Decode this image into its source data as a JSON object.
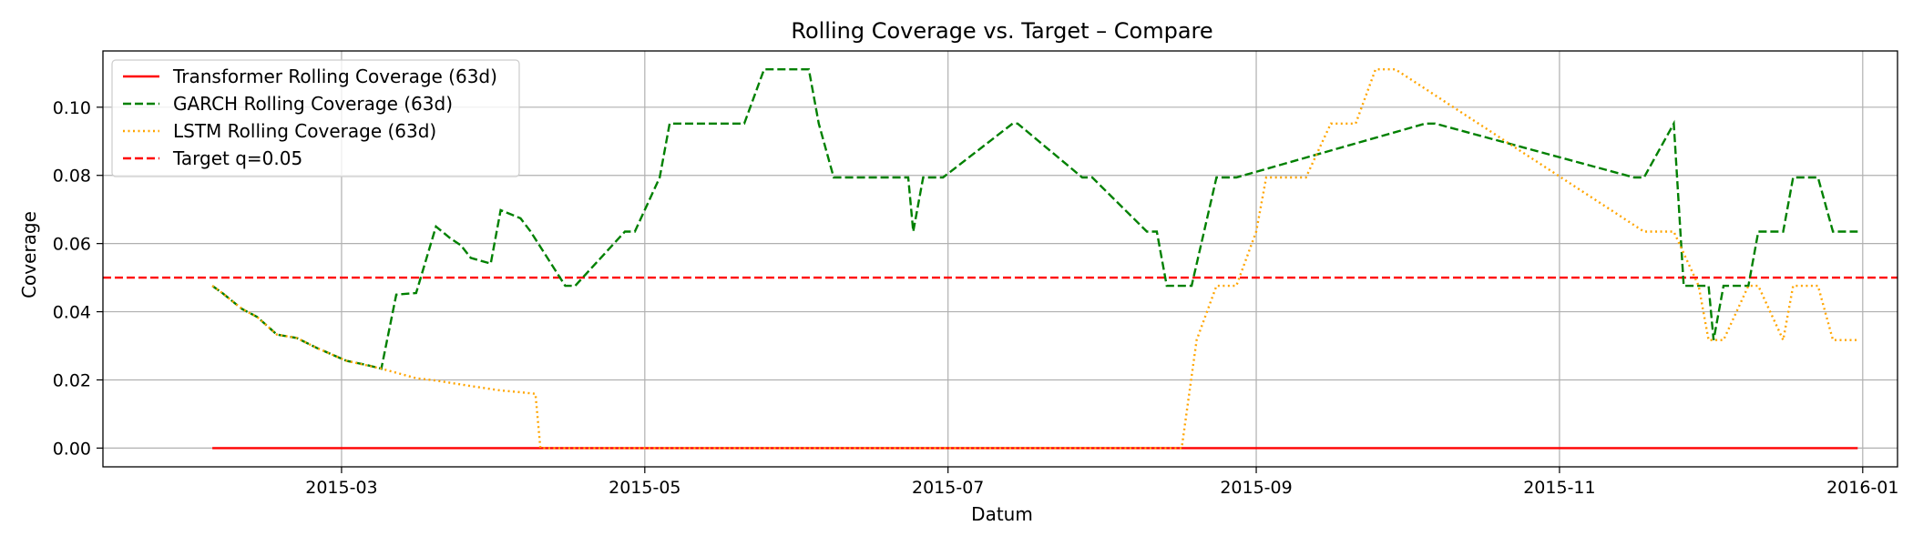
{
  "chart_data": {
    "type": "line",
    "title": "Rolling Coverage vs. Target – Compare",
    "xlabel": "Datum",
    "ylabel": "Coverage",
    "xlim": [
      "2015-01-12",
      "2016-01-08"
    ],
    "ylim": [
      -0.0055,
      0.1165
    ],
    "x_ticks": [
      "2015-03-01",
      "2015-05-01",
      "2015-07-01",
      "2015-09-01",
      "2015-11-01",
      "2016-01-01"
    ],
    "x_tick_labels": [
      "2015-03",
      "2015-05",
      "2015-07",
      "2015-09",
      "2015-11",
      "2016-01"
    ],
    "y_ticks": [
      0.0,
      0.02,
      0.04,
      0.06,
      0.08,
      0.1
    ],
    "y_tick_labels": [
      "0.00",
      "0.02",
      "0.04",
      "0.06",
      "0.08",
      "0.10"
    ],
    "grid": true,
    "legend_position": "top-left",
    "series": [
      {
        "name": "Transformer Rolling Coverage (63d)",
        "color": "#ff0000",
        "style": "solid",
        "x": [
          "2015-02-03",
          "2015-12-31"
        ],
        "y": [
          0.0,
          0.0
        ]
      },
      {
        "name": "GARCH Rolling Coverage (63d)",
        "color": "#008000",
        "style": "dashed",
        "x": [
          "2015-02-03",
          "2015-02-05",
          "2015-02-09",
          "2015-02-12",
          "2015-02-16",
          "2015-02-20",
          "2015-02-24",
          "2015-03-02",
          "2015-03-06",
          "2015-03-09",
          "2015-03-12",
          "2015-03-16",
          "2015-03-20",
          "2015-03-23",
          "2015-03-25",
          "2015-03-27",
          "2015-03-31",
          "2015-04-02",
          "2015-04-06",
          "2015-04-08",
          "2015-04-15",
          "2015-04-17",
          "2015-04-27",
          "2015-04-29",
          "2015-05-04",
          "2015-05-06",
          "2015-05-21",
          "2015-05-25",
          "2015-06-03",
          "2015-06-05",
          "2015-06-08",
          "2015-06-23",
          "2015-06-24",
          "2015-06-26",
          "2015-06-30",
          "2015-07-14",
          "2015-07-15",
          "2015-07-28",
          "2015-07-30",
          "2015-08-10",
          "2015-08-12",
          "2015-08-14",
          "2015-08-19",
          "2015-08-24",
          "2015-08-28",
          "2015-10-05",
          "2015-10-07",
          "2015-11-16",
          "2015-11-18",
          "2015-11-24",
          "2015-11-26",
          "2015-12-01",
          "2015-12-02",
          "2015-12-04",
          "2015-12-09",
          "2015-12-11",
          "2015-12-16",
          "2015-12-18",
          "2015-12-23",
          "2015-12-26",
          "2015-12-31"
        ],
        "y": [
          0.0476,
          0.0455,
          0.0408,
          0.0385,
          0.0333,
          0.0323,
          0.0294,
          0.0256,
          0.0244,
          0.0233,
          0.045,
          0.0455,
          0.065,
          0.0614,
          0.0595,
          0.0558,
          0.0541,
          0.0698,
          0.0674,
          0.0636,
          0.0476,
          0.0476,
          0.0635,
          0.0635,
          0.0794,
          0.0952,
          0.0952,
          0.1111,
          0.1111,
          0.0952,
          0.0794,
          0.0794,
          0.0635,
          0.0794,
          0.0794,
          0.0952,
          0.0952,
          0.0794,
          0.0794,
          0.0635,
          0.0635,
          0.0476,
          0.0476,
          0.0794,
          0.0794,
          0.0952,
          0.0952,
          0.0794,
          0.0794,
          0.0952,
          0.0476,
          0.0476,
          0.0317,
          0.0476,
          0.0476,
          0.0635,
          0.0635,
          0.0794,
          0.0794,
          0.0635,
          0.0635
        ]
      },
      {
        "name": "LSTM Rolling Coverage (63d)",
        "color": "#ffa500",
        "style": "dotted",
        "x": [
          "2015-02-03",
          "2015-02-05",
          "2015-02-09",
          "2015-02-12",
          "2015-02-16",
          "2015-02-20",
          "2015-02-24",
          "2015-03-02",
          "2015-03-09",
          "2015-03-16",
          "2015-03-20",
          "2015-03-27",
          "2015-04-02",
          "2015-04-06",
          "2015-04-09",
          "2015-04-10",
          "2015-08-17",
          "2015-08-20",
          "2015-08-24",
          "2015-08-28",
          "2015-09-01",
          "2015-09-03",
          "2015-09-07",
          "2015-09-11",
          "2015-09-16",
          "2015-09-21",
          "2015-09-25",
          "2015-09-29",
          "2015-11-18",
          "2015-11-20",
          "2015-11-24",
          "2015-11-29",
          "2015-12-01",
          "2015-12-04",
          "2015-12-09",
          "2015-12-11",
          "2015-12-16",
          "2015-12-18",
          "2015-12-20",
          "2015-12-23",
          "2015-12-26",
          "2015-12-31"
        ],
        "y": [
          0.0476,
          0.0455,
          0.0408,
          0.0385,
          0.0333,
          0.0323,
          0.0294,
          0.0256,
          0.0233,
          0.0205,
          0.0198,
          0.0182,
          0.0169,
          0.0164,
          0.0159,
          0.0,
          0.0,
          0.0317,
          0.0476,
          0.0476,
          0.0635,
          0.0794,
          0.0794,
          0.0794,
          0.0952,
          0.0952,
          0.1111,
          0.1111,
          0.0635,
          0.0635,
          0.0635,
          0.0476,
          0.0317,
          0.0317,
          0.0476,
          0.0476,
          0.0317,
          0.0476,
          0.0476,
          0.0476,
          0.0317,
          0.0317
        ]
      },
      {
        "name": "Target q=0.05",
        "color": "#ff0000",
        "style": "dashed",
        "y_const": 0.05
      }
    ]
  }
}
